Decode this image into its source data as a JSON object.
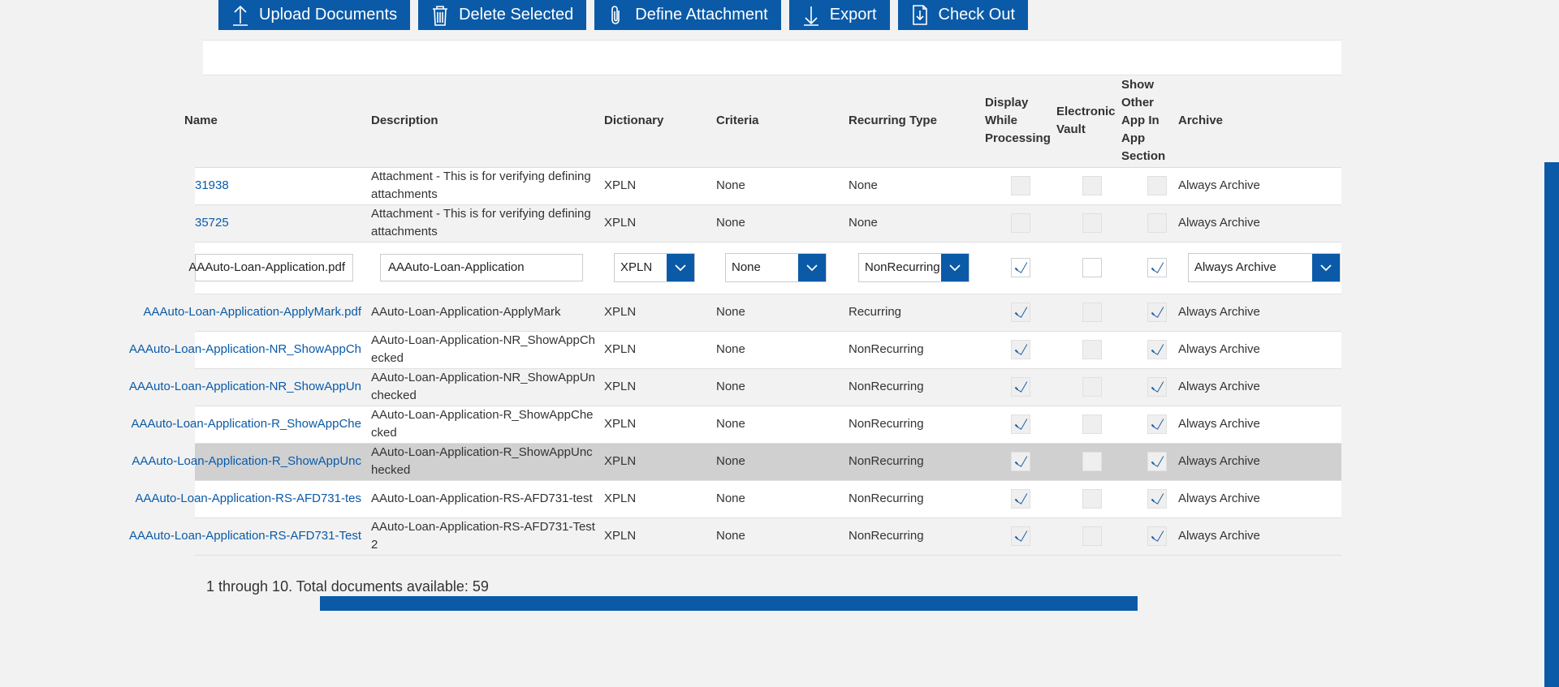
{
  "toolbar": {
    "upload": {
      "label": "Upload Documents",
      "icon": "upload-arrow-icon"
    },
    "delete": {
      "label": "Delete Selected",
      "icon": "trash-icon"
    },
    "attach": {
      "label": "Define Attachment",
      "icon": "paperclip-icon"
    },
    "export": {
      "label": "Export",
      "icon": "download-arrow-icon"
    },
    "checkout": {
      "label": "Check Out",
      "icon": "checkout-document-icon"
    }
  },
  "columns": {
    "name": "Name",
    "description": "Description",
    "dictionary": "Dictionary",
    "criteria": "Criteria",
    "recurring": "Recurring Type",
    "display": "Display While Processing",
    "vault": "Electronic Vault",
    "showother": "Show Other App In App Section",
    "archive": "Archive"
  },
  "rows": [
    {
      "name": "31938",
      "description": "Attachment - This is for verifying defining attachments",
      "dictionary": "XPLN",
      "criteria": "None",
      "recurring": "None",
      "display": false,
      "vault": false,
      "showother": false,
      "archive": "Always Archive"
    },
    {
      "name": "35725",
      "description": "Attachment - This is for verifying defining attachments",
      "dictionary": "XPLN",
      "criteria": "None",
      "recurring": "None",
      "display": false,
      "vault": false,
      "showother": false,
      "archive": "Always Archive"
    },
    {
      "name": "AAAuto-Loan-Application.pdf",
      "description": "AAAuto-Loan-Application",
      "dictionary": "XPLN",
      "criteria": "None",
      "recurring": "NonRecurring",
      "display": true,
      "vault": false,
      "showother": true,
      "archive": "Always Archive"
    },
    {
      "name": "AAAuto-Loan-Application-ApplyMark.pdf",
      "description": "AAuto-Loan-Application-ApplyMark",
      "dictionary": "XPLN",
      "criteria": "None",
      "recurring": "Recurring",
      "display": true,
      "vault": false,
      "showother": true,
      "archive": "Always Archive"
    },
    {
      "name": "AAAuto-Loan-Application-NR_ShowAppCh",
      "description": "AAuto-Loan-Application-NR_ShowAppChecked",
      "dictionary": "XPLN",
      "criteria": "None",
      "recurring": "NonRecurring",
      "display": true,
      "vault": false,
      "showother": true,
      "archive": "Always Archive"
    },
    {
      "name": "AAAuto-Loan-Application-NR_ShowAppUn",
      "description": "AAuto-Loan-Application-NR_ShowAppUnchecked",
      "dictionary": "XPLN",
      "criteria": "None",
      "recurring": "NonRecurring",
      "display": true,
      "vault": false,
      "showother": true,
      "archive": "Always Archive"
    },
    {
      "name": "AAAuto-Loan-Application-R_ShowAppChe",
      "description": "AAuto-Loan-Application-R_ShowAppChecked",
      "dictionary": "XPLN",
      "criteria": "None",
      "recurring": "NonRecurring",
      "display": true,
      "vault": false,
      "showother": true,
      "archive": "Always Archive"
    },
    {
      "name": "AAAuto-Loan-Application-R_ShowAppUnc",
      "description": "AAuto-Loan-Application-R_ShowAppUnchecked",
      "dictionary": "XPLN",
      "criteria": "None",
      "recurring": "NonRecurring",
      "display": true,
      "vault": false,
      "showother": true,
      "archive": "Always Archive"
    },
    {
      "name": "AAAuto-Loan-Application-RS-AFD731-tes",
      "description": "AAuto-Loan-Application-RS-AFD731-test",
      "dictionary": "XPLN",
      "criteria": "None",
      "recurring": "NonRecurring",
      "display": true,
      "vault": false,
      "showother": true,
      "archive": "Always Archive"
    },
    {
      "name": "AAAuto-Loan-Application-RS-AFD731-Test",
      "description": "AAuto-Loan-Application-RS-AFD731-Test2",
      "dictionary": "XPLN",
      "criteria": "None",
      "recurring": "NonRecurring",
      "display": true,
      "vault": false,
      "showother": true,
      "archive": "Always Archive"
    }
  ],
  "pager": {
    "text": "1 through 10. Total documents available: 59"
  }
}
